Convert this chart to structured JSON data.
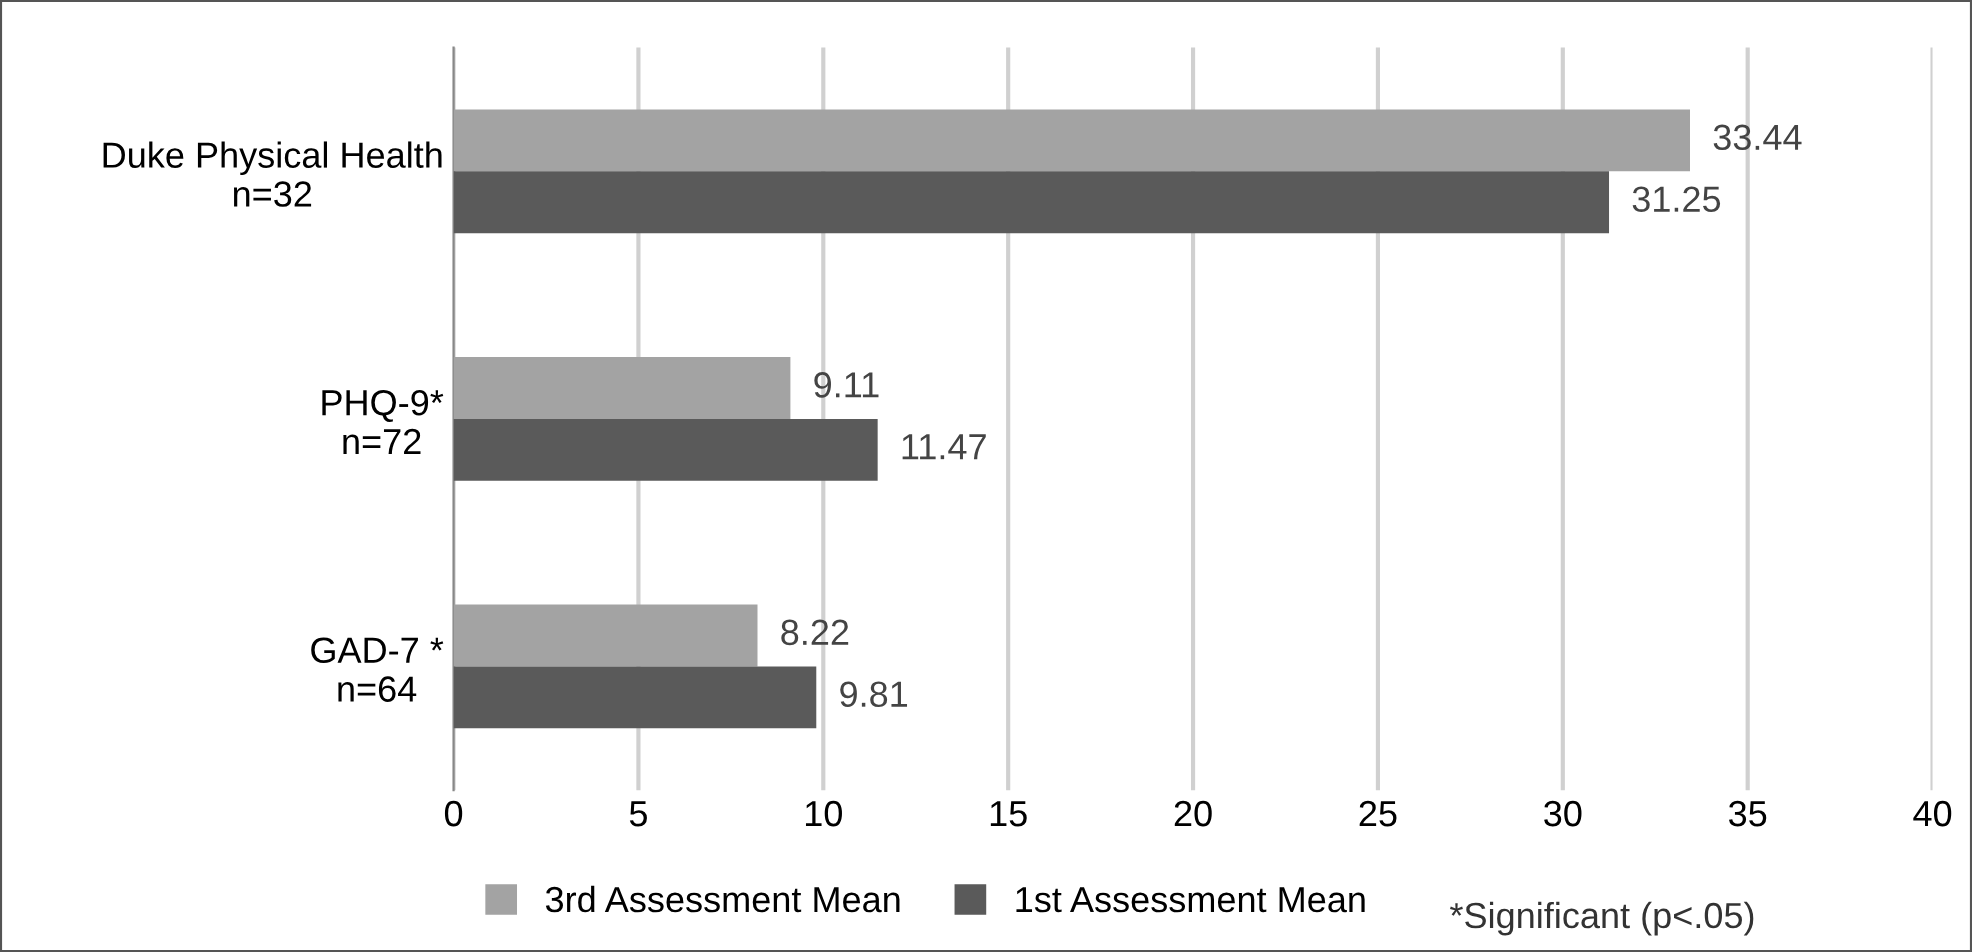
{
  "chart_data": {
    "type": "bar",
    "orientation": "horizontal",
    "categories": [
      "Duke Physical Health\nn=32",
      "PHQ-9*\nn=72",
      "GAD-7 *\nn=64"
    ],
    "series": [
      {
        "name": "3rd Assessment Mean",
        "color": "#a3a3a3",
        "values": [
          33.44,
          9.11,
          8.22
        ]
      },
      {
        "name": "1st Assessment Mean",
        "color": "#5a5a5a",
        "values": [
          31.25,
          11.47,
          9.81
        ]
      }
    ],
    "xlim": [
      0,
      40
    ],
    "xticks": [
      0,
      5,
      10,
      15,
      20,
      25,
      30,
      35,
      40
    ],
    "grid": "x",
    "legend": "bottom",
    "data_labels": true,
    "annotations": [
      "*Significant (p<.05)"
    ]
  }
}
